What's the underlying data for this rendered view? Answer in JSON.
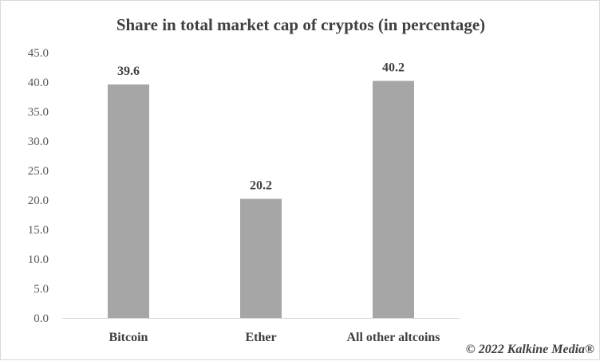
{
  "chart_data": {
    "type": "bar",
    "title": "Share in  total market cap of cryptos (in percentage)",
    "categories": [
      "Bitcoin",
      "Ether",
      "All other altcoins"
    ],
    "values": [
      39.6,
      20.2,
      40.2
    ],
    "value_labels": [
      "39.6",
      "20.2",
      "40.2"
    ],
    "ylim": [
      0,
      45
    ],
    "yticks": [
      "0.0",
      "5.0",
      "10.0",
      "15.0",
      "20.0",
      "25.0",
      "30.0",
      "35.0",
      "40.0",
      "45.0"
    ],
    "xlabel": "",
    "ylabel": "",
    "grid": false,
    "bar_color": "#a6a6a6"
  },
  "credit": "© 2022 Kalkine Media®"
}
